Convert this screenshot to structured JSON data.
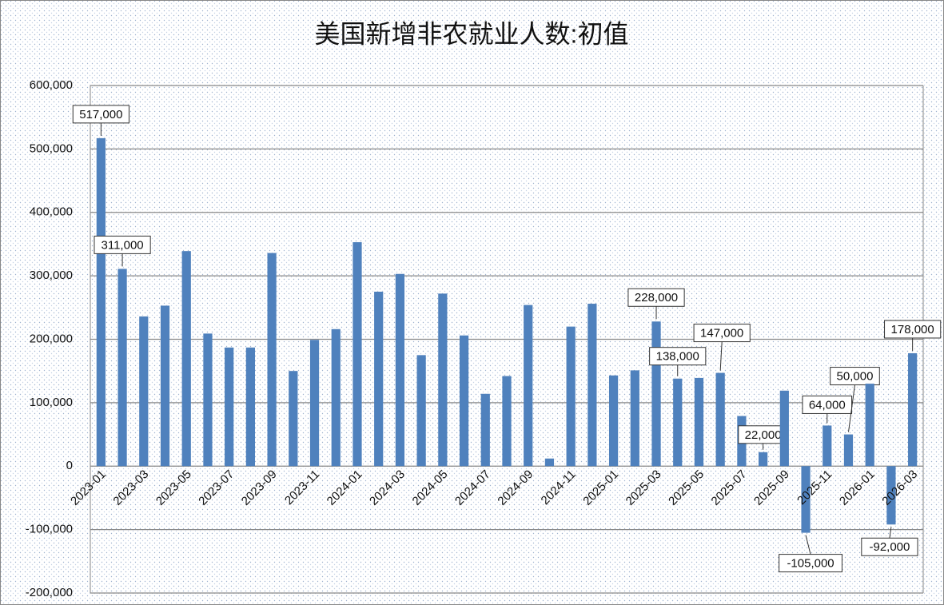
{
  "chart_data": {
    "type": "bar",
    "title": "美国新增非农就业人数:初值",
    "categories": [
      "2023-01",
      null,
      "2023-03",
      null,
      "2023-05",
      null,
      "2023-07",
      null,
      "2023-09",
      null,
      "2023-11",
      null,
      "2024-01",
      null,
      "2024-03",
      null,
      "2024-05",
      null,
      "2024-07",
      null,
      "2024-09",
      null,
      "2024-11",
      null,
      "2025-01",
      null,
      "2025-03",
      null,
      "2025-05",
      null,
      "2025-07",
      null,
      "2025-09",
      null,
      "2025-11",
      null,
      "2026-01",
      null,
      "2026-03"
    ],
    "values": [
      517000,
      311000,
      236000,
      253000,
      339000,
      209000,
      187000,
      187000,
      336000,
      150000,
      199000,
      216000,
      353000,
      275000,
      303000,
      175000,
      272000,
      206000,
      114000,
      142000,
      254000,
      12000,
      220000,
      256000,
      143000,
      151000,
      228000,
      138000,
      139000,
      147000,
      79000,
      22000,
      119000,
      -105000,
      64000,
      50000,
      130000,
      -92000,
      178000
    ],
    "value_labels": [
      "517,000",
      "311,000",
      null,
      null,
      null,
      null,
      null,
      null,
      null,
      null,
      null,
      null,
      null,
      null,
      null,
      null,
      null,
      null,
      null,
      null,
      null,
      null,
      null,
      null,
      null,
      null,
      "228,000",
      "138,000",
      null,
      "147,000",
      null,
      "22,000",
      null,
      "-105,000",
      "64,000",
      "50,000",
      null,
      "-92,000",
      "178,000"
    ],
    "color": "#4f81bd",
    "ylim": [
      -200000,
      600000
    ],
    "yticks": [
      {
        "value": -200000,
        "label": "-200,000"
      },
      {
        "value": -100000,
        "label": "-100,000"
      },
      0,
      {
        "value": 100000,
        "label": "100,000"
      },
      {
        "value": 200000,
        "label": "200,000"
      },
      {
        "value": 300000,
        "label": "300,000"
      },
      {
        "value": 400000,
        "label": "400,000"
      },
      {
        "value": 500000,
        "label": "500,000"
      },
      {
        "value": 600000,
        "label": "600,000"
      }
    ],
    "grid": true
  }
}
